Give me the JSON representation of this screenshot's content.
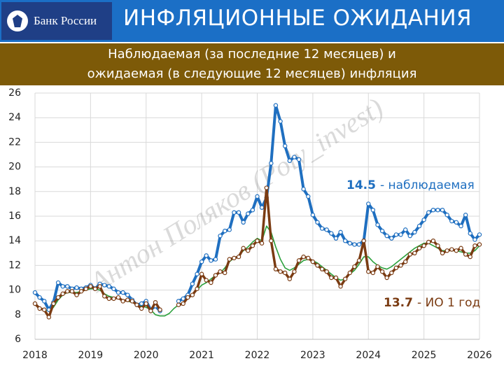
{
  "header": {
    "logo_text": "Банк России",
    "title": "ИНФЛЯЦИОННЫЕ ОЖИДАНИЯ"
  },
  "chart_data": {
    "type": "line",
    "subtitle_lines": [
      "Наблюдаемая (за последние 12 месяцев) и",
      "ожидаемая (в следующие 12 месяцев) инфляция"
    ],
    "watermark": "Антон Поляков (Poly_invest)",
    "x": [
      2018,
      2018.083,
      2018.167,
      2018.25,
      2018.333,
      2018.417,
      2018.5,
      2018.583,
      2018.667,
      2018.75,
      2018.833,
      2018.917,
      2019,
      2019.083,
      2019.167,
      2019.25,
      2019.333,
      2019.417,
      2019.5,
      2019.583,
      2019.667,
      2019.75,
      2019.833,
      2019.917,
      2020,
      2020.083,
      2020.167,
      2020.25,
      2020.333,
      2020.417,
      2020.5,
      2020.583,
      2020.667,
      2020.75,
      2020.833,
      2020.917,
      2021,
      2021.083,
      2021.167,
      2021.25,
      2021.333,
      2021.417,
      2021.5,
      2021.583,
      2021.667,
      2021.75,
      2021.833,
      2021.917,
      2022,
      2022.083,
      2022.167,
      2022.25,
      2022.333,
      2022.417,
      2022.5,
      2022.583,
      2022.667,
      2022.75,
      2022.833,
      2022.917,
      2023,
      2023.083,
      2023.167,
      2023.25,
      2023.333,
      2023.417,
      2023.5,
      2023.583,
      2023.667,
      2023.75,
      2023.833,
      2023.917,
      2024,
      2024.083,
      2024.167,
      2024.25,
      2024.333,
      2024.417,
      2024.5,
      2024.583,
      2024.667,
      2024.75,
      2024.833,
      2024.917,
      2025,
      2025.083,
      2025.167,
      2025.25,
      2025.333,
      2025.417,
      2025.5,
      2025.583,
      2025.667,
      2025.75,
      2025.833,
      2025.917,
      2026
    ],
    "series": [
      {
        "name": "наблюдаемая",
        "color": "#1f6fc0",
        "line_width": 4,
        "markers": true,
        "values": [
          9.8,
          9.4,
          9.1,
          8.4,
          9.0,
          10.6,
          10.3,
          10.3,
          10.1,
          10.2,
          10.1,
          10.2,
          10.4,
          10.1,
          10.5,
          10.4,
          10.3,
          10.1,
          9.8,
          9.8,
          9.6,
          9.2,
          8.8,
          8.9,
          9.1,
          8.4,
          8.7,
          8.3,
          null,
          null,
          null,
          9.1,
          9.3,
          9.6,
          10.5,
          11.3,
          12.3,
          12.8,
          12.4,
          12.5,
          14.4,
          14.8,
          14.9,
          16.3,
          16.3,
          15.5,
          16.2,
          16.5,
          17.6,
          16.7,
          17.5,
          20.3,
          25.0,
          23.7,
          21.7,
          20.5,
          20.8,
          20.6,
          18.2,
          17.6,
          16.1,
          15.5,
          15.0,
          14.9,
          14.6,
          14.2,
          14.7,
          14.0,
          13.8,
          13.7,
          13.7,
          14.0,
          17.0,
          16.5,
          15.3,
          14.8,
          14.4,
          14.2,
          14.5,
          14.5,
          14.9,
          14.4,
          14.7,
          15.2,
          15.7,
          16.3,
          16.5,
          16.5,
          16.5,
          16.1,
          15.6,
          15.5,
          15.2,
          16.1,
          14.6,
          14.1,
          14.5
        ]
      },
      {
        "name": "ИО 1 год",
        "color": "#7a3b12",
        "line_width": 3.5,
        "markers": true,
        "values": [
          8.9,
          8.5,
          8.4,
          7.8,
          8.9,
          9.4,
          9.7,
          9.9,
          9.9,
          9.6,
          9.9,
          10.1,
          10.3,
          10.1,
          10.3,
          9.5,
          9.3,
          9.3,
          9.4,
          9.1,
          9.2,
          9.1,
          8.8,
          8.5,
          8.9,
          8.3,
          9.0,
          8.4,
          null,
          null,
          null,
          8.8,
          8.9,
          9.4,
          9.6,
          10.1,
          11.3,
          10.8,
          10.6,
          11.2,
          11.5,
          11.4,
          12.5,
          12.6,
          12.7,
          13.4,
          13.2,
          13.6,
          14.0,
          13.8,
          18.3,
          14.0,
          11.7,
          11.5,
          11.4,
          10.9,
          11.5,
          12.4,
          12.7,
          12.6,
          12.3,
          12.0,
          11.7,
          11.5,
          11.0,
          11.0,
          10.3,
          10.9,
          11.4,
          11.9,
          12.4,
          14.0,
          11.5,
          11.4,
          11.9,
          11.5,
          11.0,
          11.4,
          11.8,
          12.0,
          12.3,
          12.9,
          13.0,
          13.4,
          13.6,
          13.9,
          14.0,
          13.6,
          13.0,
          13.2,
          13.3,
          13.2,
          13.4,
          12.9,
          12.7,
          13.6,
          13.7
        ]
      },
      {
        "color": "#2ba13c",
        "line_width": 1.6,
        "markers": false,
        "values": [
          8.8,
          8.6,
          8.4,
          8.3,
          8.6,
          9.2,
          9.6,
          9.8,
          9.8,
          9.8,
          9.9,
          10.0,
          10.1,
          10.1,
          10.0,
          9.7,
          9.5,
          9.4,
          9.3,
          9.2,
          9.1,
          9.0,
          8.8,
          8.7,
          8.6,
          8.4,
          8.0,
          7.9,
          7.9,
          8.1,
          8.5,
          8.8,
          9.0,
          9.3,
          9.6,
          10.0,
          10.4,
          10.6,
          10.9,
          11.2,
          11.4,
          11.8,
          12.3,
          12.6,
          12.8,
          13.2,
          13.5,
          13.9,
          14.2,
          14.0,
          15.2,
          14.7,
          13.5,
          12.5,
          11.8,
          11.6,
          11.8,
          12.1,
          12.4,
          12.5,
          12.4,
          12.2,
          11.9,
          11.6,
          11.3,
          11.0,
          10.8,
          10.9,
          11.3,
          11.6,
          12.1,
          12.7,
          12.7,
          12.3,
          12.0,
          11.8,
          11.7,
          11.9,
          12.2,
          12.5,
          12.8,
          13.1,
          13.4,
          13.6,
          13.8,
          13.8,
          13.6,
          13.4,
          13.2,
          13.2,
          13.2,
          13.2,
          13.1,
          13.0,
          13.0,
          13.2,
          13.6
        ]
      }
    ],
    "annotations": [
      {
        "value": 14.5,
        "text": "- наблюдаемая",
        "color": "#1f6fc0"
      },
      {
        "value": 13.7,
        "text": "- ИО 1 год",
        "color": "#7a3b12"
      }
    ],
    "xlim": [
      2018,
      2026
    ],
    "xticks": [
      2018,
      2019,
      2020,
      2021,
      2022,
      2023,
      2024,
      2025,
      2026
    ],
    "ylim": [
      6,
      26
    ],
    "yticks": [
      6,
      8,
      10,
      12,
      14,
      16,
      18,
      20,
      22,
      24,
      26
    ],
    "grid": true
  }
}
